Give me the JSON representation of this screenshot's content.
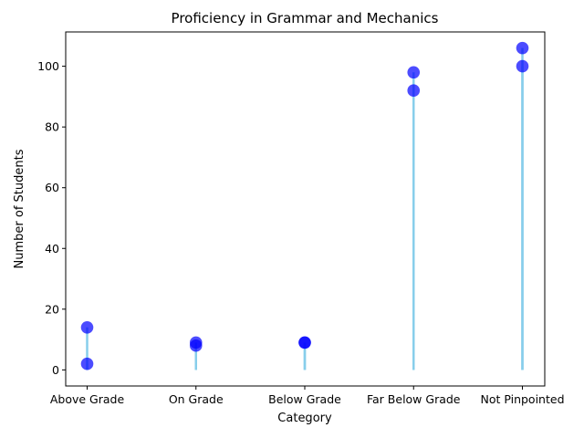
{
  "chart_data": {
    "type": "scatter",
    "title": "Proficiency in Grammar and Mechanics",
    "xlabel": "Category",
    "ylabel": "Number of Students",
    "categories": [
      "Above Grade",
      "On Grade",
      "Below Grade",
      "Far Below Grade",
      "Not Pinpointed"
    ],
    "series": [
      {
        "values": [
          2,
          9,
          9,
          92,
          100
        ]
      },
      {
        "values": [
          14,
          8,
          9,
          98,
          106
        ]
      }
    ],
    "yticks": [
      0,
      20,
      40,
      60,
      80,
      100
    ],
    "ylim": [
      -5.3,
      111.3
    ],
    "grid": false,
    "colors": {
      "marker": "#0000ff",
      "stem": "#87ceeb"
    }
  }
}
